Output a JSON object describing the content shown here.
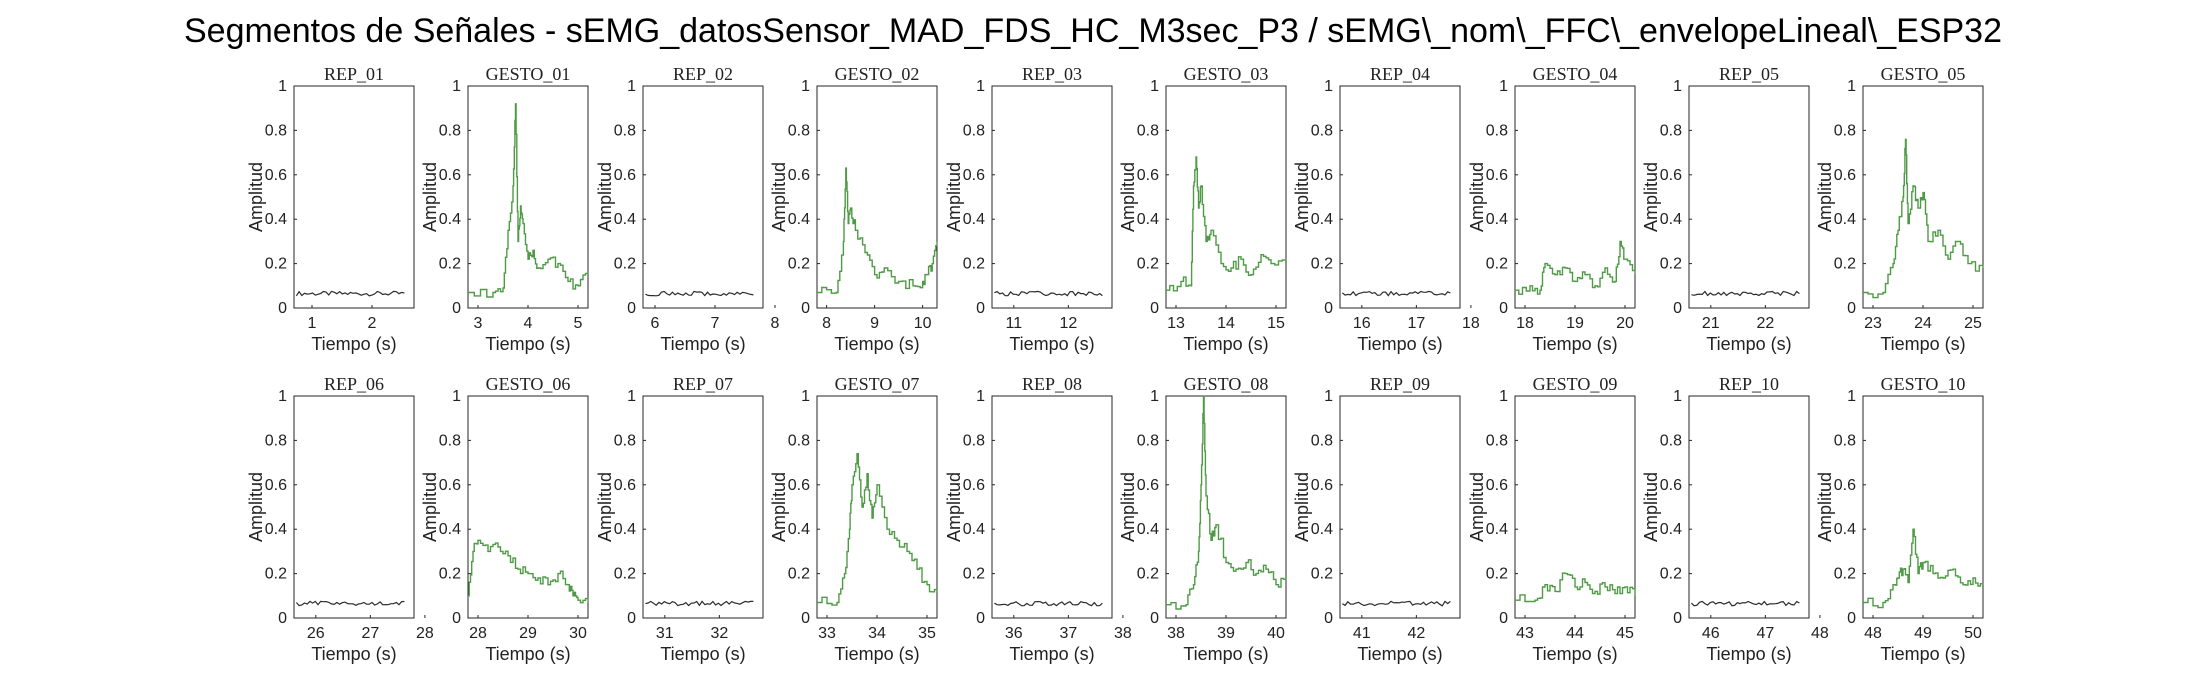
{
  "suptitle": "Segmentos de Señales - sEMG_datosSensor_MAD_FDS_HC_M3sec_P3 / sEMG\\_nom\\_FFC\\_envelopeLineal\\_ESP32",
  "xlabel": "Tiempo (s)",
  "ylabel": "Amplitud",
  "colors": {
    "rep": "#2b2b2b",
    "gesto": "#4f9a46",
    "axis": "#262626"
  },
  "chart_data": [
    {
      "type": "line",
      "title": "REP_01",
      "kind": "rep",
      "xlim": [
        0.7,
        2.7
      ],
      "xticks": [
        1,
        2
      ],
      "ylim": [
        0,
        1
      ],
      "yticks": [
        0,
        0.2,
        0.4,
        0.6,
        0.8,
        1
      ],
      "level": 0.065
    },
    {
      "type": "line",
      "title": "GESTO_01",
      "kind": "gesto",
      "xlim": [
        2.8,
        5.2
      ],
      "xticks": [
        3,
        4,
        5
      ],
      "ylim": [
        0,
        1
      ],
      "yticks": [
        0,
        0.2,
        0.4,
        0.6,
        0.8,
        1
      ],
      "x": [
        2.8,
        3.3,
        3.5,
        3.6,
        3.7,
        3.75,
        3.8,
        3.85,
        3.9,
        4.0,
        4.1,
        4.2,
        4.4,
        4.6,
        4.8,
        5.0,
        5.2
      ],
      "y": [
        0.07,
        0.07,
        0.09,
        0.35,
        0.55,
        0.92,
        0.3,
        0.46,
        0.38,
        0.22,
        0.26,
        0.18,
        0.22,
        0.2,
        0.12,
        0.1,
        0.15
      ]
    },
    {
      "type": "line",
      "title": "REP_02",
      "kind": "rep",
      "xlim": [
        5.8,
        7.8
      ],
      "xticks": [
        6,
        7,
        8
      ],
      "ylim": [
        0,
        1
      ],
      "yticks": [
        0,
        0.2,
        0.4,
        0.6,
        0.8,
        1
      ],
      "level": 0.065
    },
    {
      "type": "line",
      "title": "GESTO_02",
      "kind": "gesto",
      "xlim": [
        7.8,
        10.3
      ],
      "xticks": [
        8,
        9,
        10
      ],
      "ylim": [
        0,
        1
      ],
      "yticks": [
        0,
        0.2,
        0.4,
        0.6,
        0.8,
        1
      ],
      "x": [
        7.8,
        8.2,
        8.35,
        8.4,
        8.45,
        8.5,
        8.6,
        8.8,
        9.0,
        9.2,
        9.5,
        9.8,
        10.0,
        10.1,
        10.2,
        10.3
      ],
      "y": [
        0.07,
        0.07,
        0.3,
        0.63,
        0.38,
        0.45,
        0.35,
        0.25,
        0.15,
        0.18,
        0.12,
        0.1,
        0.12,
        0.15,
        0.2,
        0.3
      ]
    },
    {
      "type": "line",
      "title": "REP_03",
      "kind": "rep",
      "xlim": [
        10.6,
        12.8
      ],
      "xticks": [
        11,
        12
      ],
      "ylim": [
        0,
        1
      ],
      "yticks": [
        0,
        0.2,
        0.4,
        0.6,
        0.8,
        1
      ],
      "level": 0.065
    },
    {
      "type": "line",
      "title": "GESTO_03",
      "kind": "gesto",
      "xlim": [
        12.8,
        15.2
      ],
      "xticks": [
        13,
        14,
        15
      ],
      "ylim": [
        0,
        1
      ],
      "yticks": [
        0,
        0.2,
        0.4,
        0.6,
        0.8,
        1
      ],
      "x": [
        12.8,
        13.1,
        13.3,
        13.35,
        13.4,
        13.45,
        13.5,
        13.6,
        13.7,
        13.9,
        14.1,
        14.3,
        14.5,
        14.7,
        14.9,
        15.2
      ],
      "y": [
        0.08,
        0.12,
        0.1,
        0.55,
        0.68,
        0.45,
        0.55,
        0.3,
        0.35,
        0.2,
        0.18,
        0.22,
        0.15,
        0.24,
        0.2,
        0.22
      ]
    },
    {
      "type": "line",
      "title": "REP_04",
      "kind": "rep",
      "xlim": [
        15.6,
        17.8
      ],
      "xticks": [
        16,
        17,
        18
      ],
      "ylim": [
        0,
        1
      ],
      "yticks": [
        0,
        0.2,
        0.4,
        0.6,
        0.8,
        1
      ],
      "level": 0.065
    },
    {
      "type": "line",
      "title": "GESTO_04",
      "kind": "gesto",
      "xlim": [
        17.8,
        20.2
      ],
      "xticks": [
        18,
        19,
        20
      ],
      "ylim": [
        0,
        1
      ],
      "yticks": [
        0,
        0.2,
        0.4,
        0.6,
        0.8,
        1
      ],
      "x": [
        17.8,
        18.1,
        18.3,
        18.4,
        18.6,
        18.8,
        19.0,
        19.2,
        19.4,
        19.6,
        19.8,
        19.9,
        20.0,
        20.2
      ],
      "y": [
        0.08,
        0.1,
        0.08,
        0.2,
        0.15,
        0.18,
        0.12,
        0.15,
        0.1,
        0.18,
        0.12,
        0.3,
        0.22,
        0.15
      ]
    },
    {
      "type": "line",
      "title": "REP_05",
      "kind": "rep",
      "xlim": [
        20.6,
        22.8
      ],
      "xticks": [
        21,
        22
      ],
      "ylim": [
        0,
        1
      ],
      "yticks": [
        0,
        0.2,
        0.4,
        0.6,
        0.8,
        1
      ],
      "level": 0.065
    },
    {
      "type": "line",
      "title": "GESTO_05",
      "kind": "gesto",
      "xlim": [
        22.8,
        25.2
      ],
      "xticks": [
        23,
        24,
        25
      ],
      "ylim": [
        0,
        1
      ],
      "yticks": [
        0,
        0.2,
        0.4,
        0.6,
        0.8,
        1
      ],
      "x": [
        22.8,
        23.2,
        23.4,
        23.5,
        23.6,
        23.65,
        23.7,
        23.8,
        23.9,
        24.0,
        24.1,
        24.3,
        24.5,
        24.7,
        24.9,
        25.2
      ],
      "y": [
        0.07,
        0.07,
        0.2,
        0.35,
        0.5,
        0.76,
        0.38,
        0.55,
        0.45,
        0.52,
        0.3,
        0.35,
        0.22,
        0.3,
        0.2,
        0.18
      ]
    },
    {
      "type": "line",
      "title": "REP_06",
      "kind": "rep",
      "xlim": [
        25.6,
        27.8
      ],
      "xticks": [
        26,
        27,
        28
      ],
      "ylim": [
        0,
        1
      ],
      "yticks": [
        0,
        0.2,
        0.4,
        0.6,
        0.8,
        1
      ],
      "level": 0.065
    },
    {
      "type": "line",
      "title": "GESTO_06",
      "kind": "gesto",
      "xlim": [
        27.8,
        30.2
      ],
      "xticks": [
        28,
        29,
        30
      ],
      "ylim": [
        0,
        1
      ],
      "yticks": [
        0,
        0.2,
        0.4,
        0.6,
        0.8,
        1
      ],
      "x": [
        27.8,
        27.9,
        28.0,
        28.2,
        28.4,
        28.6,
        28.8,
        29.0,
        29.2,
        29.4,
        29.6,
        29.8,
        29.9,
        30.0,
        30.2
      ],
      "y": [
        0.1,
        0.3,
        0.35,
        0.3,
        0.32,
        0.28,
        0.22,
        0.2,
        0.18,
        0.15,
        0.2,
        0.15,
        0.1,
        0.08,
        0.07
      ]
    },
    {
      "type": "line",
      "title": "REP_07",
      "kind": "rep",
      "xlim": [
        30.6,
        32.8
      ],
      "xticks": [
        31,
        32
      ],
      "ylim": [
        0,
        1
      ],
      "yticks": [
        0,
        0.2,
        0.4,
        0.6,
        0.8,
        1
      ],
      "level": 0.065
    },
    {
      "type": "line",
      "title": "GESTO_07",
      "kind": "gesto",
      "xlim": [
        32.8,
        35.2
      ],
      "xticks": [
        33,
        34,
        35
      ],
      "ylim": [
        0,
        1
      ],
      "yticks": [
        0,
        0.2,
        0.4,
        0.6,
        0.8,
        1
      ],
      "x": [
        32.8,
        33.2,
        33.35,
        33.45,
        33.5,
        33.6,
        33.7,
        33.8,
        33.9,
        34.0,
        34.2,
        34.4,
        34.6,
        34.8,
        35.0,
        35.2
      ],
      "y": [
        0.07,
        0.07,
        0.2,
        0.4,
        0.6,
        0.74,
        0.5,
        0.65,
        0.45,
        0.6,
        0.4,
        0.35,
        0.3,
        0.22,
        0.15,
        0.12
      ]
    },
    {
      "type": "line",
      "title": "REP_08",
      "kind": "rep",
      "xlim": [
        35.6,
        37.8
      ],
      "xticks": [
        36,
        37,
        38
      ],
      "ylim": [
        0,
        1
      ],
      "yticks": [
        0,
        0.2,
        0.4,
        0.6,
        0.8,
        1
      ],
      "level": 0.065
    },
    {
      "type": "line",
      "title": "GESTO_08",
      "kind": "gesto",
      "xlim": [
        37.8,
        40.2
      ],
      "xticks": [
        38,
        39,
        40
      ],
      "ylim": [
        0,
        1
      ],
      "yticks": [
        0,
        0.2,
        0.4,
        0.6,
        0.8,
        1
      ],
      "x": [
        37.8,
        38.2,
        38.35,
        38.45,
        38.5,
        38.55,
        38.6,
        38.7,
        38.8,
        39.0,
        39.2,
        39.4,
        39.6,
        39.8,
        40.0,
        40.2
      ],
      "y": [
        0.06,
        0.06,
        0.15,
        0.3,
        0.6,
        1.0,
        0.55,
        0.35,
        0.42,
        0.25,
        0.22,
        0.25,
        0.2,
        0.22,
        0.15,
        0.18
      ]
    },
    {
      "type": "line",
      "title": "REP_09",
      "kind": "rep",
      "xlim": [
        40.6,
        42.8
      ],
      "xticks": [
        41,
        42
      ],
      "ylim": [
        0,
        1
      ],
      "yticks": [
        0,
        0.2,
        0.4,
        0.6,
        0.8,
        1
      ],
      "level": 0.065
    },
    {
      "type": "line",
      "title": "GESTO_09",
      "kind": "gesto",
      "xlim": [
        42.8,
        45.2
      ],
      "xticks": [
        43,
        44,
        45
      ],
      "ylim": [
        0,
        1
      ],
      "yticks": [
        0,
        0.2,
        0.4,
        0.6,
        0.8,
        1
      ],
      "x": [
        42.8,
        43.2,
        43.4,
        43.6,
        43.8,
        44.0,
        44.2,
        44.4,
        44.6,
        44.8,
        45.0,
        45.2
      ],
      "y": [
        0.08,
        0.08,
        0.15,
        0.12,
        0.2,
        0.14,
        0.16,
        0.12,
        0.14,
        0.11,
        0.14,
        0.1
      ]
    },
    {
      "type": "line",
      "title": "REP_10",
      "kind": "rep",
      "xlim": [
        45.6,
        47.8
      ],
      "xticks": [
        46,
        47,
        48
      ],
      "ylim": [
        0,
        1
      ],
      "yticks": [
        0,
        0.2,
        0.4,
        0.6,
        0.8,
        1
      ],
      "level": 0.065
    },
    {
      "type": "line",
      "title": "GESTO_10",
      "kind": "gesto",
      "xlim": [
        47.8,
        50.2
      ],
      "xticks": [
        48,
        49,
        50
      ],
      "ylim": [
        0,
        1
      ],
      "yticks": [
        0,
        0.2,
        0.4,
        0.6,
        0.8,
        1
      ],
      "x": [
        47.8,
        48.2,
        48.4,
        48.5,
        48.6,
        48.7,
        48.8,
        48.9,
        49.0,
        49.2,
        49.4,
        49.6,
        49.8,
        50.0,
        50.2
      ],
      "y": [
        0.07,
        0.07,
        0.15,
        0.18,
        0.22,
        0.16,
        0.4,
        0.2,
        0.25,
        0.2,
        0.18,
        0.22,
        0.15,
        0.18,
        0.15
      ]
    }
  ]
}
